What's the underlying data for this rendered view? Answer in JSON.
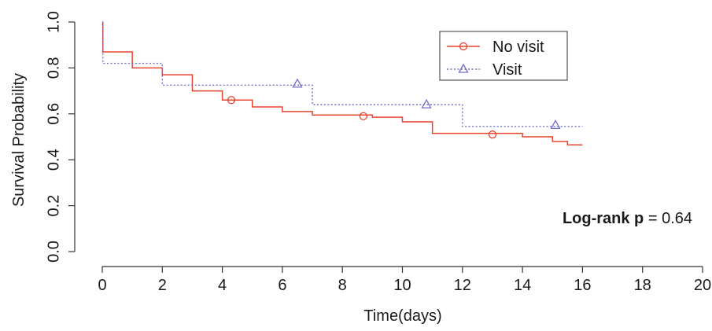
{
  "chart_data": {
    "type": "line",
    "subtype": "kaplan-meier step",
    "xlabel": "Time(days)",
    "ylabel": "Survival Probability",
    "xlim": [
      0,
      20
    ],
    "ylim": [
      0,
      1
    ],
    "x_ticks": [
      0,
      2,
      4,
      6,
      8,
      10,
      12,
      14,
      16,
      18,
      20
    ],
    "y_ticks": [
      0.0,
      0.2,
      0.4,
      0.6,
      0.8,
      1.0
    ],
    "x_tick_labels": [
      "0",
      "2",
      "4",
      "6",
      "8",
      "10",
      "12",
      "14",
      "16",
      "18",
      "20"
    ],
    "y_tick_labels": [
      "0.0",
      "0.2",
      "0.4",
      "0.6",
      "0.8",
      "1.0"
    ],
    "grid": false,
    "legend_position": "top-right",
    "series": [
      {
        "name": "No visit",
        "color": "#e8432e",
        "line_style": "solid",
        "marker": "circle",
        "steps": [
          [
            0,
            1.0
          ],
          [
            0.02,
            0.87
          ],
          [
            1,
            0.8
          ],
          [
            2,
            0.77
          ],
          [
            3,
            0.7
          ],
          [
            4,
            0.66
          ],
          [
            5,
            0.63
          ],
          [
            6,
            0.61
          ],
          [
            7,
            0.595
          ],
          [
            9,
            0.585
          ],
          [
            10,
            0.565
          ],
          [
            11,
            0.515
          ],
          [
            14,
            0.5
          ],
          [
            15,
            0.48
          ],
          [
            15.5,
            0.465
          ],
          [
            16,
            0.465
          ]
        ],
        "censor_marks": [
          [
            4.3,
            0.66
          ],
          [
            8.7,
            0.59
          ],
          [
            13.0,
            0.51
          ]
        ]
      },
      {
        "name": "Visit",
        "color": "#6f6fc9",
        "line_style": "dotted",
        "marker": "triangle",
        "steps": [
          [
            0,
            1.0
          ],
          [
            0.02,
            0.82
          ],
          [
            2,
            0.725
          ],
          [
            7,
            0.64
          ],
          [
            12,
            0.545
          ],
          [
            16,
            0.545
          ]
        ],
        "censor_marks": [
          [
            6.5,
            0.73
          ],
          [
            10.8,
            0.64
          ],
          [
            15.1,
            0.55
          ]
        ]
      }
    ],
    "annotation": {
      "label": "Log-rank p",
      "text": " = 0.64"
    }
  }
}
